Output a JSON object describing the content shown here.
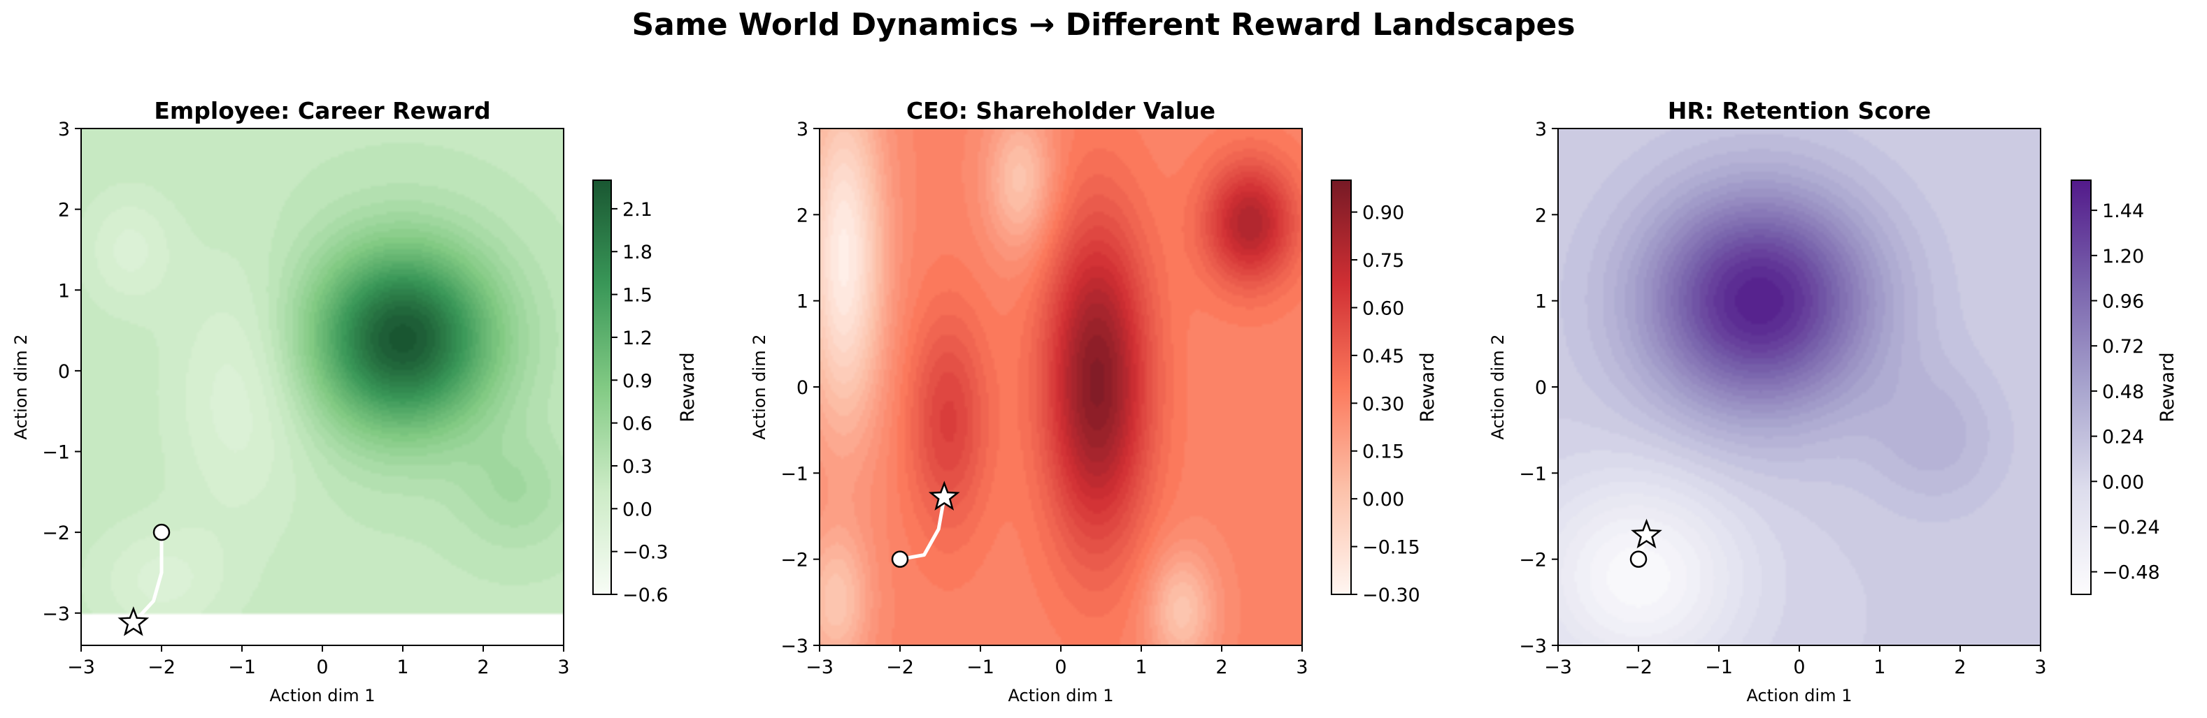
{
  "figure": {
    "title": "Same World Dynamics → Different Reward Landscapes"
  },
  "chart_data": [
    {
      "type": "heatmap",
      "title": "Employee: Career Reward",
      "xlabel": "Action dim 1",
      "ylabel": "Action dim 2",
      "xlim": [
        -3,
        3
      ],
      "ylim": [
        -3.4,
        3
      ],
      "xticks": [
        "−3",
        "−2",
        "−1",
        "0",
        "1",
        "2",
        "3"
      ],
      "yticks": [
        "−3",
        "−2",
        "−1",
        "0",
        "1",
        "2",
        "3"
      ],
      "colorbar": {
        "label": "Reward",
        "range": [
          -0.6,
          2.3
        ],
        "ticks": [
          "2.1",
          "1.8",
          "1.5",
          "1.2",
          "0.9",
          "0.6",
          "0.3",
          "0.0",
          "−0.3",
          "−0.6"
        ],
        "tick_values": [
          2.1,
          1.8,
          1.5,
          1.2,
          0.9,
          0.6,
          0.3,
          0.0,
          -0.3,
          -0.6
        ]
      },
      "colormap": [
        "#f7fcf5",
        "#c7e9c0",
        "#74c476",
        "#238b45",
        "#00441b"
      ],
      "landscape": {
        "base": 0.2,
        "peaks": [
          {
            "x": 1.0,
            "y": 0.4,
            "amp": 2.1,
            "sx": 0.8,
            "sy": 0.8
          },
          {
            "x": -1.0,
            "y": -0.3,
            "amp": -0.35,
            "sx": 0.6,
            "sy": 1.1
          },
          {
            "x": 2.4,
            "y": -1.5,
            "amp": 0.3,
            "sx": 0.5,
            "sy": 0.5
          },
          {
            "x": -2.4,
            "y": 1.5,
            "amp": -0.3,
            "sx": 0.4,
            "sy": 0.5
          },
          {
            "x": -2.0,
            "y": -2.6,
            "amp": -0.3,
            "sx": 0.6,
            "sy": 0.5
          }
        ]
      },
      "start": {
        "x": -2.0,
        "y": -2.0
      },
      "end": {
        "x": -2.35,
        "y": -3.12
      },
      "path": [
        [
          -2.0,
          -2.0
        ],
        [
          -2.0,
          -2.5
        ],
        [
          -2.1,
          -2.85
        ],
        [
          -2.35,
          -3.12
        ]
      ]
    },
    {
      "type": "heatmap",
      "title": "CEO: Shareholder Value",
      "xlabel": "Action dim 1",
      "ylabel": "Action dim 2",
      "xlim": [
        -3,
        3
      ],
      "ylim": [
        -3,
        3
      ],
      "xticks": [
        "−3",
        "−2",
        "−1",
        "0",
        "1",
        "2",
        "3"
      ],
      "yticks": [
        "−3",
        "−2",
        "−1",
        "0",
        "1",
        "2",
        "3"
      ],
      "colorbar": {
        "label": "Reward",
        "range": [
          -0.3,
          1.0
        ],
        "ticks": [
          "0.90",
          "0.75",
          "0.60",
          "0.45",
          "0.30",
          "0.15",
          "0.00",
          "−0.15",
          "−0.30"
        ],
        "tick_values": [
          0.9,
          0.75,
          0.6,
          0.45,
          0.3,
          0.15,
          0.0,
          -0.15,
          -0.3
        ]
      },
      "colormap": [
        "#fff5f0",
        "#fcbba1",
        "#fb6a4a",
        "#cb181d",
        "#67000d"
      ],
      "landscape": {
        "base": 0.3,
        "peaks": [
          {
            "x": 0.45,
            "y": 0.05,
            "amp": 0.65,
            "sx": 0.45,
            "sy": 1.3
          },
          {
            "x": -1.4,
            "y": -0.4,
            "amp": 0.3,
            "sx": 0.35,
            "sy": 0.9
          },
          {
            "x": 2.35,
            "y": 1.9,
            "amp": 0.5,
            "sx": 0.4,
            "sy": 0.5
          },
          {
            "x": -2.7,
            "y": 1.5,
            "amp": -0.55,
            "sx": 0.35,
            "sy": 1.4
          },
          {
            "x": -0.5,
            "y": 2.4,
            "amp": -0.3,
            "sx": 0.3,
            "sy": 0.6
          },
          {
            "x": 1.5,
            "y": -2.6,
            "amp": -0.3,
            "sx": 0.3,
            "sy": 0.5
          },
          {
            "x": -2.8,
            "y": -2.5,
            "amp": -0.3,
            "sx": 0.3,
            "sy": 0.6
          }
        ]
      },
      "start": {
        "x": -2.0,
        "y": -2.0
      },
      "end": {
        "x": -1.45,
        "y": -1.28
      },
      "path": [
        [
          -2.0,
          -2.0
        ],
        [
          -1.7,
          -1.95
        ],
        [
          -1.52,
          -1.65
        ],
        [
          -1.45,
          -1.28
        ]
      ]
    },
    {
      "type": "heatmap",
      "title": "HR: Retention Score",
      "xlabel": "Action dim 1",
      "ylabel": "Action dim 2",
      "xlim": [
        -3,
        3
      ],
      "ylim": [
        -3,
        3
      ],
      "xticks": [
        "−3",
        "−2",
        "−1",
        "0",
        "1",
        "2",
        "3"
      ],
      "yticks": [
        "−3",
        "−2",
        "−1",
        "0",
        "1",
        "2",
        "3"
      ],
      "colorbar": {
        "label": "Reward",
        "range": [
          -0.6,
          1.6
        ],
        "ticks": [
          "1.44",
          "1.20",
          "0.96",
          "0.72",
          "0.48",
          "0.24",
          "0.00",
          "−0.24",
          "−0.48"
        ],
        "tick_values": [
          1.44,
          1.2,
          0.96,
          0.72,
          0.48,
          0.24,
          0.0,
          -0.24,
          -0.48
        ]
      },
      "colormap": [
        "#fcfbfd",
        "#dadaeb",
        "#9e9ac8",
        "#6a51a3",
        "#3f007d"
      ],
      "landscape": {
        "base": 0.1,
        "peaks": [
          {
            "x": -0.5,
            "y": 1.0,
            "amp": 1.45,
            "sx": 1.0,
            "sy": 0.9
          },
          {
            "x": 1.7,
            "y": -0.6,
            "amp": 0.25,
            "sx": 0.6,
            "sy": 0.6
          },
          {
            "x": -2.0,
            "y": -2.2,
            "amp": -0.65,
            "sx": 0.9,
            "sy": 0.8
          }
        ]
      },
      "start": {
        "x": -2.0,
        "y": -2.0
      },
      "end": {
        "x": -1.9,
        "y": -1.72
      },
      "path": [
        [
          -2.0,
          -2.0
        ],
        [
          -1.9,
          -1.72
        ]
      ]
    }
  ]
}
